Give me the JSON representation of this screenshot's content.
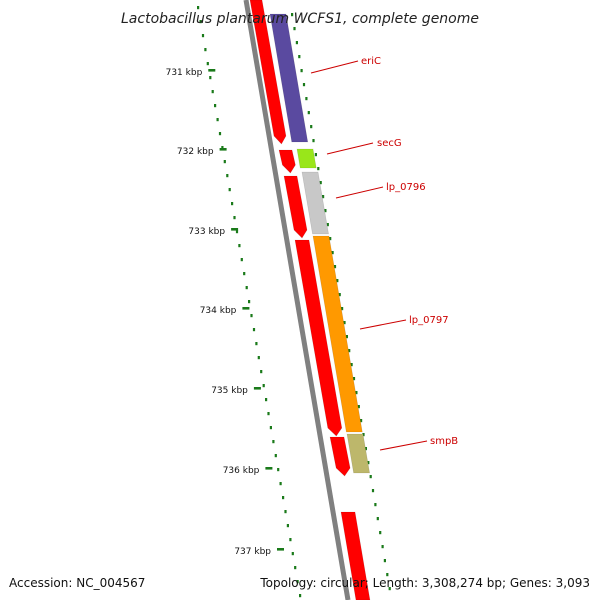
{
  "title": "Lactobacillus plantarum WCFS1, complete genome",
  "accession": "Accession: NC_004567",
  "summary": "Topology: circular; Length: 3,308,274 bp; Genes: 3,093",
  "colors": {
    "cds_forward_strand": "#ff0000",
    "backbone": "#808080",
    "gc_ticks": "#1a7a1a",
    "label_line": "#cc0000"
  },
  "scale_labels": [
    "731 kbp",
    "732 kbp",
    "733 kbp",
    "734 kbp",
    "735 kbp",
    "736 kbp",
    "737 kbp"
  ],
  "genes": [
    {
      "name": "eriC",
      "color": "#5a4aa0"
    },
    {
      "name": "secG",
      "color": "#99e61a"
    },
    {
      "name": "lp_0796",
      "color": "#c8c8c8"
    },
    {
      "name": "lp_0797",
      "color": "#ff9900"
    },
    {
      "name": "smpB",
      "color": "#bdb76b"
    }
  ]
}
